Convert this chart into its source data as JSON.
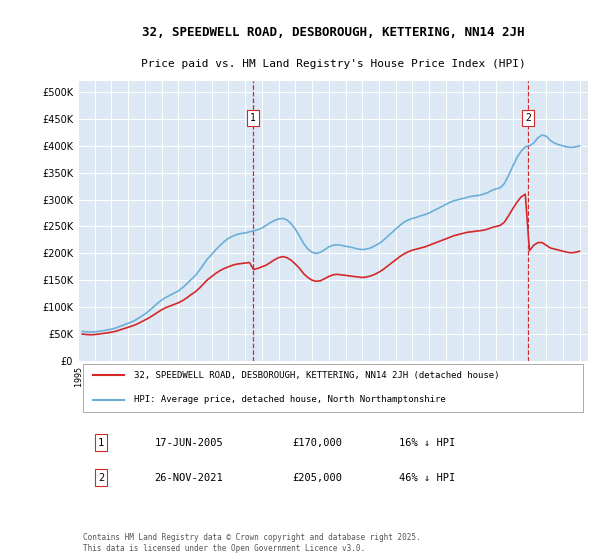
{
  "title_line1": "32, SPEEDWELL ROAD, DESBOROUGH, KETTERING, NN14 2JH",
  "title_line2": "Price paid vs. HM Land Registry's House Price Index (HPI)",
  "xlabel": "",
  "ylabel": "",
  "ylim": [
    0,
    520000
  ],
  "xlim_start": 1995.0,
  "xlim_end": 2025.5,
  "hpi_color": "#6baed6",
  "price_color": "#d62728",
  "vline_color": "#d62728",
  "bg_color": "#dce9f5",
  "grid_color": "#ffffff",
  "annotation1": {
    "label": "1",
    "x": 2005.46,
    "y_price": 170000
  },
  "annotation2": {
    "label": "2",
    "x": 2021.9,
    "y_price": 205000
  },
  "legend_price_label": "32, SPEEDWELL ROAD, DESBOROUGH, KETTERING, NN14 2JH (detached house)",
  "legend_hpi_label": "HPI: Average price, detached house, North Northamptonshire",
  "table_rows": [
    [
      "1",
      "17-JUN-2005",
      "£170,000",
      "16% ↓ HPI"
    ],
    [
      "2",
      "26-NOV-2021",
      "£205,000",
      "46% ↓ HPI"
    ]
  ],
  "footer": "Contains HM Land Registry data © Crown copyright and database right 2025.\nThis data is licensed under the Open Government Licence v3.0.",
  "hpi_data": {
    "years": [
      1995.25,
      1995.5,
      1995.75,
      1996.0,
      1996.25,
      1996.5,
      1996.75,
      1997.0,
      1997.25,
      1997.5,
      1997.75,
      1998.0,
      1998.25,
      1998.5,
      1998.75,
      1999.0,
      1999.25,
      1999.5,
      1999.75,
      2000.0,
      2000.25,
      2000.5,
      2000.75,
      2001.0,
      2001.25,
      2001.5,
      2001.75,
      2002.0,
      2002.25,
      2002.5,
      2002.75,
      2003.0,
      2003.25,
      2003.5,
      2003.75,
      2004.0,
      2004.25,
      2004.5,
      2004.75,
      2005.0,
      2005.25,
      2005.5,
      2005.75,
      2006.0,
      2006.25,
      2006.5,
      2006.75,
      2007.0,
      2007.25,
      2007.5,
      2007.75,
      2008.0,
      2008.25,
      2008.5,
      2008.75,
      2009.0,
      2009.25,
      2009.5,
      2009.75,
      2010.0,
      2010.25,
      2010.5,
      2010.75,
      2011.0,
      2011.25,
      2011.5,
      2011.75,
      2012.0,
      2012.25,
      2012.5,
      2012.75,
      2013.0,
      2013.25,
      2013.5,
      2013.75,
      2014.0,
      2014.25,
      2014.5,
      2014.75,
      2015.0,
      2015.25,
      2015.5,
      2015.75,
      2016.0,
      2016.25,
      2016.5,
      2016.75,
      2017.0,
      2017.25,
      2017.5,
      2017.75,
      2018.0,
      2018.25,
      2018.5,
      2018.75,
      2019.0,
      2019.25,
      2019.5,
      2019.75,
      2020.0,
      2020.25,
      2020.5,
      2020.75,
      2021.0,
      2021.25,
      2021.5,
      2021.75,
      2022.0,
      2022.25,
      2022.5,
      2022.75,
      2023.0,
      2023.25,
      2023.5,
      2023.75,
      2024.0,
      2024.25,
      2024.5,
      2024.75,
      2025.0
    ],
    "values": [
      55000,
      54000,
      53500,
      54000,
      55000,
      56000,
      57500,
      59000,
      61000,
      64000,
      67000,
      70000,
      73000,
      77000,
      82000,
      87000,
      93000,
      100000,
      107000,
      113000,
      118000,
      122000,
      126000,
      130000,
      136000,
      143000,
      151000,
      158000,
      168000,
      179000,
      190000,
      198000,
      207000,
      215000,
      222000,
      228000,
      232000,
      235000,
      237000,
      238000,
      240000,
      242000,
      244000,
      247000,
      252000,
      257000,
      261000,
      264000,
      265000,
      262000,
      255000,
      245000,
      232000,
      218000,
      208000,
      202000,
      200000,
      202000,
      207000,
      212000,
      215000,
      216000,
      215000,
      213000,
      212000,
      210000,
      208000,
      207000,
      208000,
      210000,
      214000,
      218000,
      224000,
      231000,
      238000,
      245000,
      252000,
      258000,
      262000,
      265000,
      267000,
      270000,
      272000,
      275000,
      279000,
      283000,
      287000,
      291000,
      295000,
      298000,
      300000,
      302000,
      304000,
      306000,
      307000,
      308000,
      310000,
      313000,
      317000,
      320000,
      322000,
      330000,
      345000,
      362000,
      378000,
      390000,
      398000,
      400000,
      405000,
      415000,
      420000,
      418000,
      410000,
      405000,
      402000,
      400000,
      398000,
      397000,
      398000,
      400000
    ]
  },
  "price_data": {
    "years": [
      1995.25,
      1995.5,
      1995.75,
      1996.0,
      1996.25,
      1996.5,
      1996.75,
      1997.0,
      1997.25,
      1997.5,
      1997.75,
      1998.0,
      1998.25,
      1998.5,
      1998.75,
      1999.0,
      1999.25,
      1999.5,
      1999.75,
      2000.0,
      2000.25,
      2000.5,
      2000.75,
      2001.0,
      2001.25,
      2001.5,
      2001.75,
      2002.0,
      2002.25,
      2002.5,
      2002.75,
      2003.0,
      2003.25,
      2003.5,
      2003.75,
      2004.0,
      2004.25,
      2004.5,
      2004.75,
      2005.0,
      2005.25,
      2005.5,
      2005.75,
      2006.0,
      2006.25,
      2006.5,
      2006.75,
      2007.0,
      2007.25,
      2007.5,
      2007.75,
      2008.0,
      2008.25,
      2008.5,
      2008.75,
      2009.0,
      2009.25,
      2009.5,
      2009.75,
      2010.0,
      2010.25,
      2010.5,
      2010.75,
      2011.0,
      2011.25,
      2011.5,
      2011.75,
      2012.0,
      2012.25,
      2012.5,
      2012.75,
      2013.0,
      2013.25,
      2013.5,
      2013.75,
      2014.0,
      2014.25,
      2014.5,
      2014.75,
      2015.0,
      2015.25,
      2015.5,
      2015.75,
      2016.0,
      2016.25,
      2016.5,
      2016.75,
      2017.0,
      2017.25,
      2017.5,
      2017.75,
      2018.0,
      2018.25,
      2018.5,
      2018.75,
      2019.0,
      2019.25,
      2019.5,
      2019.75,
      2020.0,
      2020.25,
      2020.5,
      2020.75,
      2021.0,
      2021.25,
      2021.5,
      2021.75,
      2022.0,
      2022.25,
      2022.5,
      2022.75,
      2023.0,
      2023.25,
      2023.5,
      2023.75,
      2024.0,
      2024.25,
      2024.5,
      2024.75,
      2025.0
    ],
    "values": [
      50000,
      49000,
      48500,
      49000,
      50000,
      51000,
      52000,
      53500,
      55000,
      57500,
      60000,
      62500,
      65000,
      68000,
      72000,
      76000,
      80000,
      85000,
      90000,
      95000,
      99000,
      102000,
      105000,
      108000,
      112000,
      117000,
      123000,
      128000,
      135000,
      143000,
      151000,
      157000,
      163000,
      168000,
      172000,
      175000,
      178000,
      180000,
      181000,
      182000,
      183000,
      170000,
      172000,
      175000,
      178000,
      183000,
      188000,
      192000,
      194000,
      192000,
      187000,
      180000,
      172000,
      162000,
      155000,
      150000,
      148000,
      149000,
      153000,
      157000,
      160000,
      161000,
      160000,
      159000,
      158000,
      157000,
      156000,
      155000,
      156000,
      158000,
      161000,
      165000,
      170000,
      176000,
      182000,
      188000,
      194000,
      199000,
      203000,
      206000,
      208000,
      210000,
      212000,
      215000,
      218000,
      221000,
      224000,
      227000,
      230000,
      233000,
      235000,
      237000,
      239000,
      240000,
      241000,
      242000,
      243000,
      245000,
      248000,
      250000,
      252000,
      258000,
      270000,
      283000,
      295000,
      305000,
      310000,
      205000,
      215000,
      220000,
      220000,
      215000,
      210000,
      208000,
      206000,
      204000,
      202000,
      201000,
      202000,
      204000
    ]
  }
}
